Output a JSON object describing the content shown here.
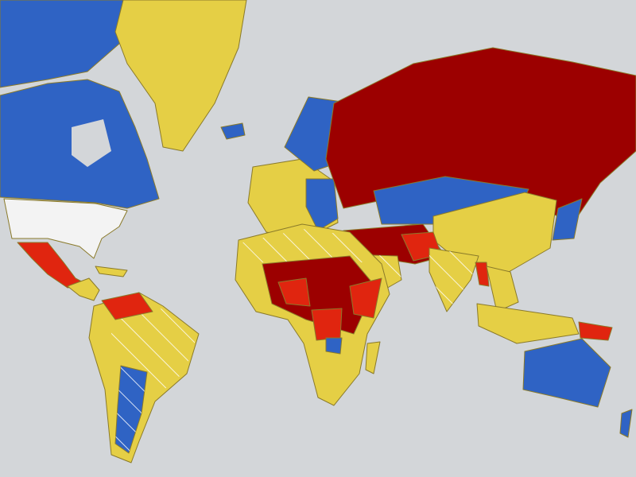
{
  "map": {
    "projection": "world-mercator",
    "colors": {
      "ocean": "#d3d6d9",
      "blue": "#2f63c4",
      "yellow": "#e5cf45",
      "dark_red": "#9c0000",
      "red": "#e0250f",
      "white": "#f3f3f3",
      "hatch": "#ffffff"
    },
    "hatched_regions": [
      "brazil",
      "argentina",
      "india",
      "sahara",
      "arabia",
      "sahel-west"
    ]
  }
}
